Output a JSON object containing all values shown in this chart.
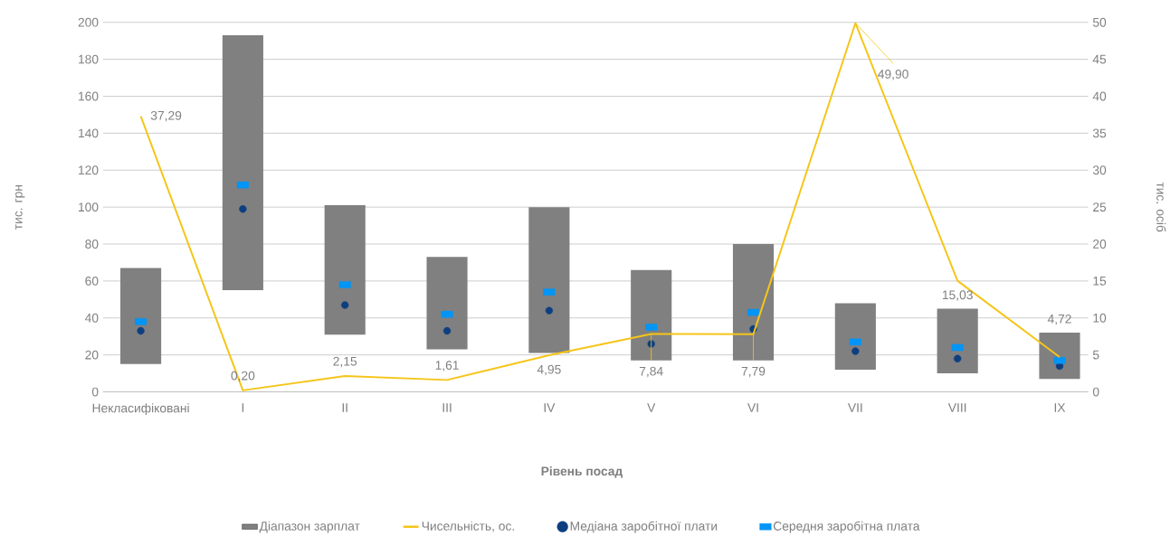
{
  "chart_data": {
    "type": "bar",
    "xlabel": "Рівень посад",
    "ylabel": "тис. грн",
    "y2label": "тис. осіб",
    "categories": [
      "Некласифіковані",
      "I",
      "II",
      "III",
      "IV",
      "V",
      "VI",
      "VII",
      "VIII",
      "IX"
    ],
    "ylim": [
      0,
      200
    ],
    "yticks": [
      0,
      20,
      40,
      60,
      80,
      100,
      120,
      140,
      160,
      180,
      200
    ],
    "y2lim": [
      0,
      50
    ],
    "y2ticks": [
      0,
      5,
      10,
      15,
      20,
      25,
      30,
      35,
      40,
      45,
      50
    ],
    "grid": "y",
    "legend": "bottom",
    "series": [
      {
        "name": "Діапазон зарплат",
        "color": "#808080",
        "base": [
          15,
          55,
          31,
          23,
          21,
          17,
          17,
          12,
          10,
          7
        ],
        "values": [
          52,
          138,
          70,
          50,
          79,
          49,
          63,
          36,
          35,
          25
        ]
      },
      {
        "name": "Чисельність, ос.",
        "type": "line",
        "axis": "y2",
        "color": "#f5c518",
        "values": [
          37.29,
          0.2,
          2.15,
          1.61,
          4.95,
          7.84,
          7.79,
          49.9,
          15.03,
          4.72
        ],
        "value_labels": [
          "37,29",
          "0,20",
          "2,15",
          "1,61",
          "4,95",
          "7,84",
          "7,79",
          "49,90",
          "15,03",
          "4,72"
        ]
      },
      {
        "name": "Медіана заробітної плати",
        "type": "scatter",
        "color": "#0d3f80",
        "marker": "circle",
        "values": [
          33,
          99,
          47,
          33,
          44,
          26,
          34,
          22,
          18,
          14
        ]
      },
      {
        "name": "Середня заробітна плата",
        "type": "scatter",
        "color": "#0095f6",
        "marker": "square",
        "values": [
          38,
          112,
          58,
          42,
          54,
          35,
          43,
          27,
          24,
          17
        ]
      }
    ]
  }
}
